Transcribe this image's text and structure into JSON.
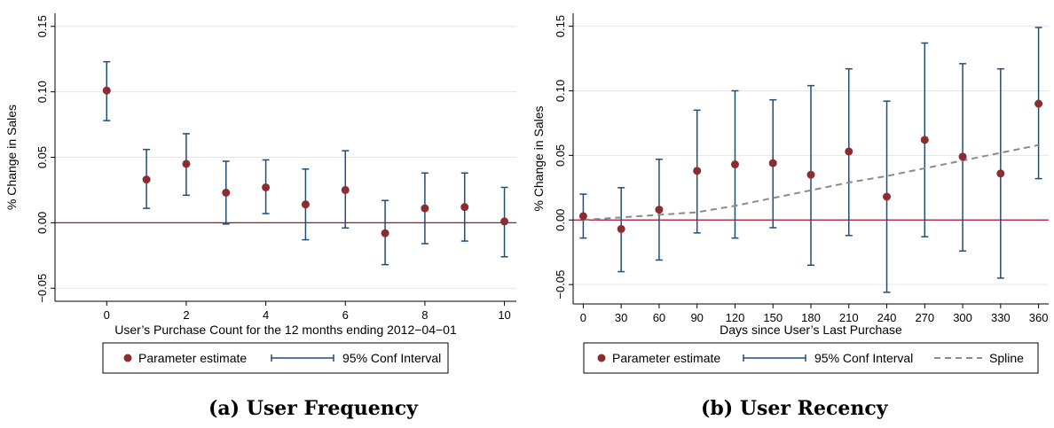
{
  "colors": {
    "point": "#8b2c2f",
    "ci": "#1f4e79",
    "zero_line": "#b01030",
    "spline": "#8a8a8a",
    "grid": "#e6e6e6"
  },
  "chart_data": [
    {
      "type": "scatter",
      "caption": "(a) User Frequency",
      "xlabel": "User’s Purchase Count for the 12 months ending 2012−04−01",
      "ylabel": "% Change in Sales",
      "xlim": [
        -1.3,
        10.3
      ],
      "ylim": [
        -0.06,
        0.16
      ],
      "xticks": [
        0,
        2,
        4,
        6,
        8,
        10
      ],
      "yticks": [
        -0.05,
        0.0,
        0.05,
        0.1,
        0.15
      ],
      "ytick_labels": [
        "−0.05",
        "0.00",
        "0.05",
        "0.10",
        "0.15"
      ],
      "grid": true,
      "reference_line_y": 0,
      "series": [
        {
          "name": "Parameter estimate",
          "x": [
            0,
            1,
            2,
            3,
            4,
            5,
            6,
            7,
            8,
            9,
            10
          ],
          "y": [
            0.101,
            0.033,
            0.045,
            0.023,
            0.027,
            0.014,
            0.025,
            -0.008,
            0.011,
            0.012,
            0.001
          ],
          "ci_low": [
            0.078,
            0.011,
            0.021,
            -0.001,
            0.007,
            -0.013,
            -0.004,
            -0.032,
            -0.016,
            -0.014,
            -0.026
          ],
          "ci_high": [
            0.123,
            0.056,
            0.068,
            0.047,
            0.048,
            0.041,
            0.055,
            0.017,
            0.038,
            0.038,
            0.027
          ]
        }
      ],
      "legend": {
        "placement": "bottom",
        "items": [
          {
            "label": "Parameter estimate",
            "kind": "point"
          },
          {
            "label": "95% Conf Interval",
            "kind": "ci"
          }
        ]
      }
    },
    {
      "type": "scatter",
      "caption": "(b) User Recency",
      "xlabel": "Days since User’s Last Purchase",
      "ylabel": "% Change in Sales",
      "xlim": [
        -8,
        368
      ],
      "ylim": [
        -0.065,
        0.16
      ],
      "xticks": [
        0,
        30,
        60,
        90,
        120,
        150,
        180,
        210,
        240,
        270,
        300,
        330,
        360
      ],
      "yticks": [
        -0.05,
        0.0,
        0.05,
        0.1,
        0.15
      ],
      "ytick_labels": [
        "−0.05",
        "0.00",
        "0.05",
        "0.10",
        "0.15"
      ],
      "grid": true,
      "reference_line_y": 0,
      "series": [
        {
          "name": "Parameter estimate",
          "x": [
            0,
            30,
            60,
            90,
            120,
            150,
            180,
            210,
            240,
            270,
            300,
            330,
            360
          ],
          "y": [
            0.003,
            -0.007,
            0.008,
            0.038,
            0.043,
            0.044,
            0.035,
            0.053,
            0.018,
            0.062,
            0.049,
            0.036,
            0.09
          ],
          "ci_low": [
            -0.014,
            -0.04,
            -0.031,
            -0.01,
            -0.014,
            -0.006,
            -0.035,
            -0.012,
            -0.056,
            -0.013,
            -0.024,
            -0.045,
            0.032
          ],
          "ci_high": [
            0.02,
            0.025,
            0.047,
            0.085,
            0.1,
            0.093,
            0.104,
            0.117,
            0.092,
            0.137,
            0.121,
            0.117,
            0.149
          ]
        },
        {
          "name": "Spline",
          "kind": "line",
          "x": [
            0,
            30,
            60,
            90,
            120,
            150,
            180,
            210,
            240,
            270,
            300,
            330,
            360
          ],
          "y": [
            0.0,
            0.002,
            0.004,
            0.006,
            0.011,
            0.017,
            0.023,
            0.029,
            0.034,
            0.04,
            0.046,
            0.052,
            0.058
          ]
        }
      ],
      "legend": {
        "placement": "bottom",
        "items": [
          {
            "label": "Parameter estimate",
            "kind": "point"
          },
          {
            "label": "95% Conf Interval",
            "kind": "ci"
          },
          {
            "label": "Spline",
            "kind": "dash"
          }
        ]
      }
    }
  ]
}
